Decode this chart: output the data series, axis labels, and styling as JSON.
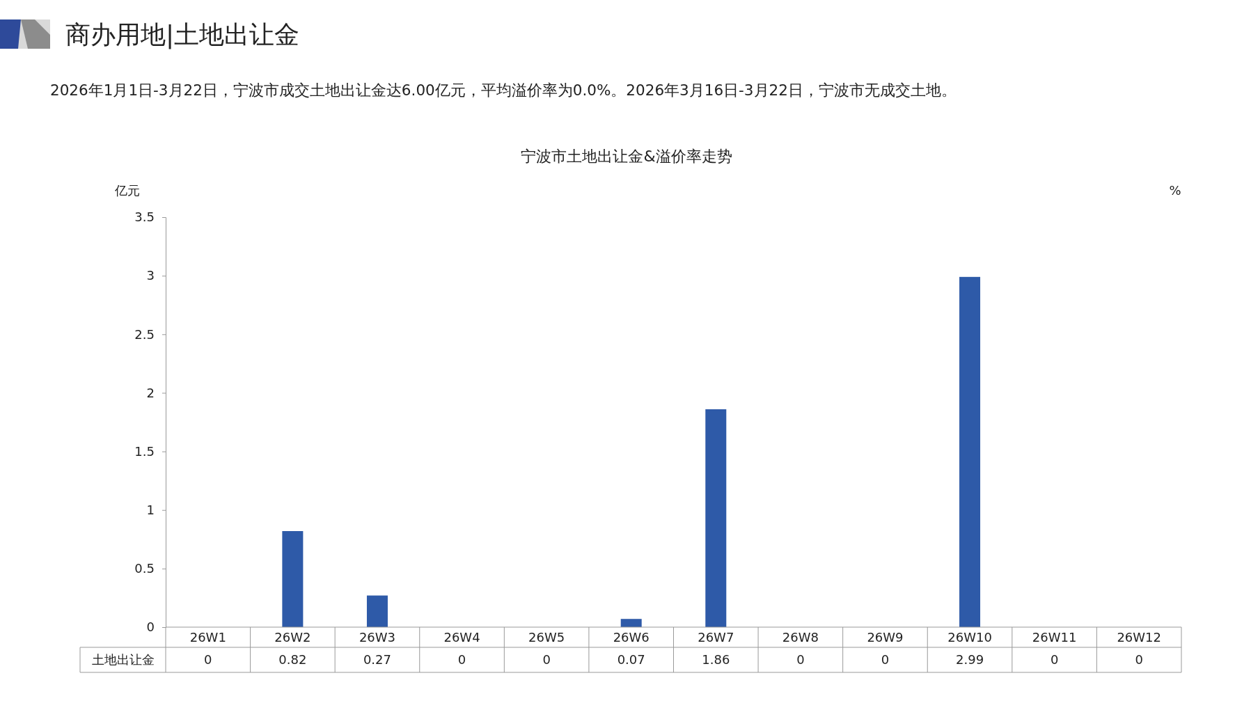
{
  "chart_data": {
    "type": "bar",
    "title": "商办用地|土地出让金",
    "subtitle": "2026年1月1日-3月22日，宁波市成交土地出让金达6.00亿元，平均溢价率为0.0%。2026年3月16日-3月22日，宁波市无成交土地。",
    "annotations": [
      "宁波市土地出让金&溢价率走势"
    ],
    "ylabel": "亿元",
    "y2label": "%",
    "categories": [
      "26W1",
      "26W2",
      "26W3",
      "26W4",
      "26W5",
      "26W6",
      "26W7",
      "26W8",
      "26W9",
      "26W10",
      "26W11",
      "26W12"
    ],
    "series": [
      {
        "name": "土地出让金",
        "color": "#2e5aa8",
        "values": [
          0,
          0.82,
          0.27,
          0,
          0,
          0.07,
          1.86,
          0,
          0,
          2.99,
          0,
          0
        ]
      }
    ],
    "ylim": [
      0,
      3.5
    ],
    "yticks": [
      0,
      0.5,
      1,
      1.5,
      2,
      2.5,
      3,
      3.5
    ],
    "grid": false,
    "data_labels": true
  }
}
